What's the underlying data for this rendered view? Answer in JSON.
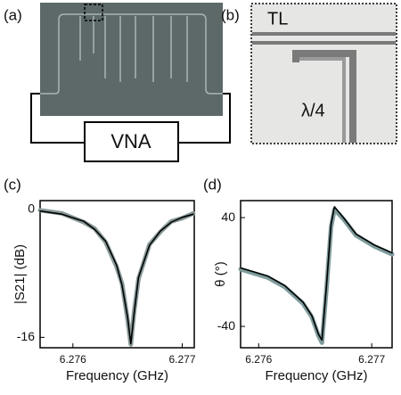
{
  "figure": {
    "panel_a": {
      "label": "(a)",
      "instrument": "VNA"
    },
    "panel_b": {
      "label": "(b)",
      "line_label": "TL",
      "resonator_label": "λ/4"
    }
  },
  "chart_data": [
    {
      "type": "line",
      "panel_label": "(c)",
      "xlabel": "Frequency (GHz)",
      "ylabel": "|S21| (dB)",
      "xlim": [
        6.2757,
        6.27711
      ],
      "ylim": [
        -17.3,
        1.1
      ],
      "xticks": [
        6.276,
        6.277
      ],
      "yticks": [
        0,
        -16
      ],
      "x": [
        6.2757,
        6.2759,
        6.2761,
        6.2762,
        6.2763,
        6.2764,
        6.27645,
        6.2765,
        6.27653,
        6.27656,
        6.2766,
        6.2767,
        6.2768,
        6.2769,
        6.277,
        6.2771
      ],
      "series": [
        {
          "color": "#8a9a9a",
          "values": [
            -0.1,
            -0.5,
            -1.6,
            -2.4,
            -4.1,
            -7.2,
            -9.3,
            -13.8,
            -16.9,
            -12.8,
            -8.7,
            -4.4,
            -2.8,
            -1.5,
            -1.1,
            -0.5
          ]
        },
        {
          "color": "#000000",
          "values": [
            -0.2,
            -0.6,
            -1.5,
            -2.5,
            -4,
            -7,
            -9.5,
            -13.5,
            -16.8,
            -13,
            -8.5,
            -4.5,
            -2.7,
            -1.6,
            -1,
            -0.6
          ]
        }
      ]
    },
    {
      "type": "line",
      "panel_label": "(d)",
      "xlabel": "Frequency (GHz)",
      "ylabel": "θ (°)",
      "xlim": [
        6.27584,
        6.27718
      ],
      "ylim": [
        -55.7,
        52.5
      ],
      "xticks": [
        6.276,
        6.277
      ],
      "yticks": [
        40,
        -40
      ],
      "x": [
        6.27584,
        6.27608,
        6.27623,
        6.27639,
        6.27647,
        6.27653,
        6.27656,
        6.2766,
        6.27664,
        6.27667,
        6.27675,
        6.27686,
        6.27702,
        6.27718
      ],
      "series": [
        {
          "color": "#7f9c9c",
          "values": [
            2,
            -4,
            -11,
            -23,
            -33,
            -47,
            -52,
            -12,
            33,
            46,
            39,
            27,
            19,
            13
          ]
        },
        {
          "color": "#000000",
          "values": [
            3,
            -3,
            -10,
            -22,
            -32,
            -46,
            -50,
            -10,
            35,
            48,
            40,
            28,
            20,
            14
          ]
        }
      ]
    }
  ]
}
